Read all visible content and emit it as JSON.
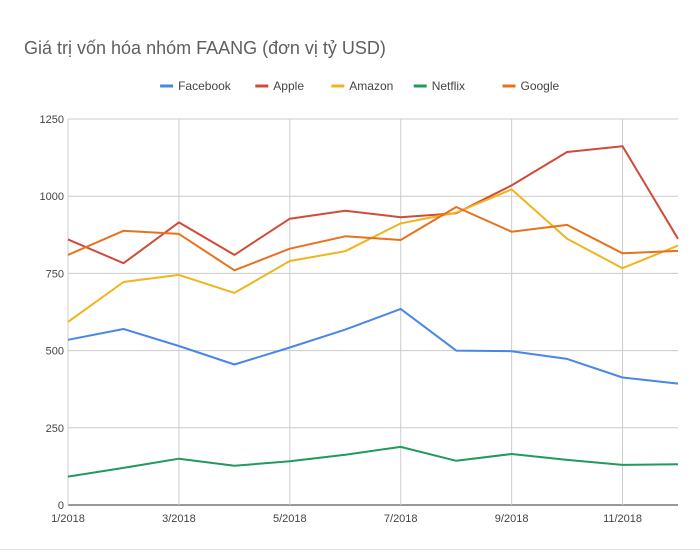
{
  "chart_data": {
    "type": "line",
    "title": "Giá trị vốn hóa nhóm FAANG (đơn vị tỷ USD)",
    "xlabel": "",
    "ylabel": "",
    "x": [
      "1/2018",
      "2/2018",
      "3/2018",
      "4/2018",
      "5/2018",
      "6/2018",
      "7/2018",
      "8/2018",
      "9/2018",
      "10/2018",
      "11/2018",
      "12/2018"
    ],
    "x_tick_labels": [
      "1/2018",
      "3/2018",
      "5/2018",
      "7/2018",
      "9/2018",
      "11/2018"
    ],
    "ylim": [
      0,
      1250
    ],
    "y_ticks": [
      0,
      250,
      500,
      750,
      1000,
      1250
    ],
    "legend_position": "top-center",
    "grid": true,
    "series": [
      {
        "name": "Facebook",
        "color": "#4a86e8",
        "values": [
          535,
          570,
          515,
          455,
          510,
          568,
          635,
          500,
          498,
          473,
          413,
          393
        ]
      },
      {
        "name": "Apple",
        "color": "#d04b3a",
        "values": [
          860,
          783,
          915,
          810,
          927,
          953,
          932,
          945,
          1035,
          1143,
          1162,
          862
        ]
      },
      {
        "name": "Amazon",
        "color": "#f0b41c",
        "values": [
          593,
          722,
          745,
          687,
          790,
          822,
          912,
          947,
          1022,
          862,
          767,
          840
        ]
      },
      {
        "name": "Netflix",
        "color": "#219a5b",
        "values": [
          92,
          120,
          150,
          127,
          142,
          163,
          188,
          143,
          165,
          146,
          130,
          132
        ]
      },
      {
        "name": "Google",
        "color": "#e8711d",
        "values": [
          810,
          888,
          878,
          760,
          830,
          870,
          858,
          965,
          885,
          907,
          815,
          823
        ]
      }
    ]
  }
}
